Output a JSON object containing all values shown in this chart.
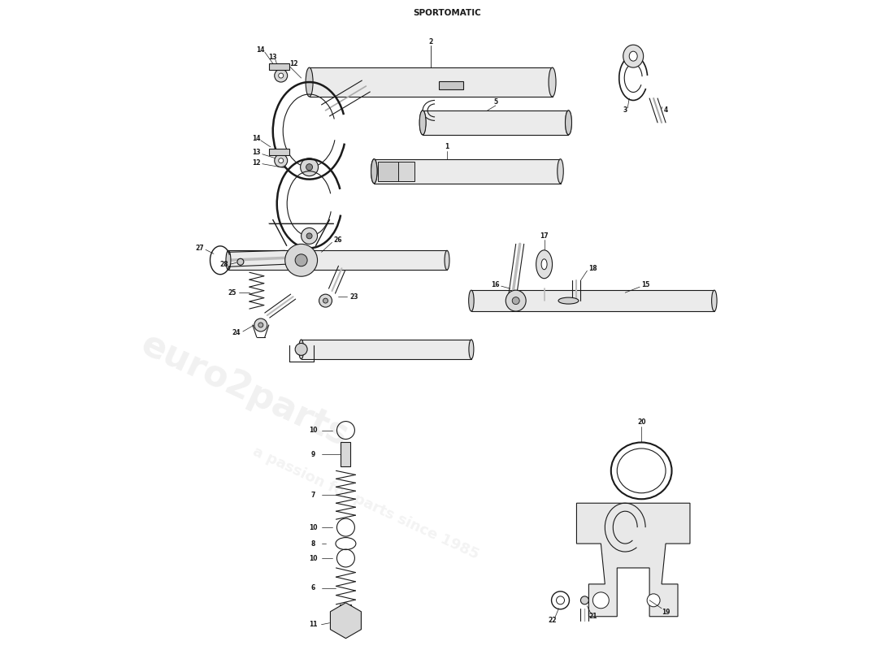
{
  "title": "SPORTOMATIC",
  "bg": "#ffffff",
  "lc": "#1a1a1a",
  "figsize": [
    11.0,
    8.0
  ],
  "dpi": 100
}
